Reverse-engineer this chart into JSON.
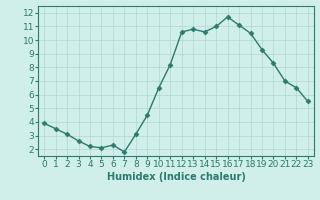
{
  "x": [
    0,
    1,
    2,
    3,
    4,
    5,
    6,
    7,
    8,
    9,
    10,
    11,
    12,
    13,
    14,
    15,
    16,
    17,
    18,
    19,
    20,
    21,
    22,
    23
  ],
  "y": [
    3.9,
    3.5,
    3.1,
    2.6,
    2.2,
    2.1,
    2.3,
    1.8,
    3.1,
    4.5,
    6.5,
    8.2,
    10.6,
    10.8,
    10.6,
    11.0,
    11.7,
    11.1,
    10.5,
    9.3,
    8.3,
    7.0,
    6.5,
    5.5
  ],
  "line_color": "#2d7a6e",
  "marker": "D",
  "marker_size": 2.5,
  "bg_color": "#d0eeea",
  "grid_color": "#b0d8d2",
  "xlabel": "Humidex (Indice chaleur)",
  "yticks": [
    2,
    3,
    4,
    5,
    6,
    7,
    8,
    9,
    10,
    11,
    12
  ],
  "ylim": [
    1.5,
    12.5
  ],
  "xlim": [
    -0.5,
    23.5
  ],
  "xticks": [
    0,
    1,
    2,
    3,
    4,
    5,
    6,
    7,
    8,
    9,
    10,
    11,
    12,
    13,
    14,
    15,
    16,
    17,
    18,
    19,
    20,
    21,
    22,
    23
  ],
  "xlabel_fontsize": 7,
  "tick_fontsize": 6.5,
  "line_width": 1.0,
  "fig_width": 3.2,
  "fig_height": 2.0
}
